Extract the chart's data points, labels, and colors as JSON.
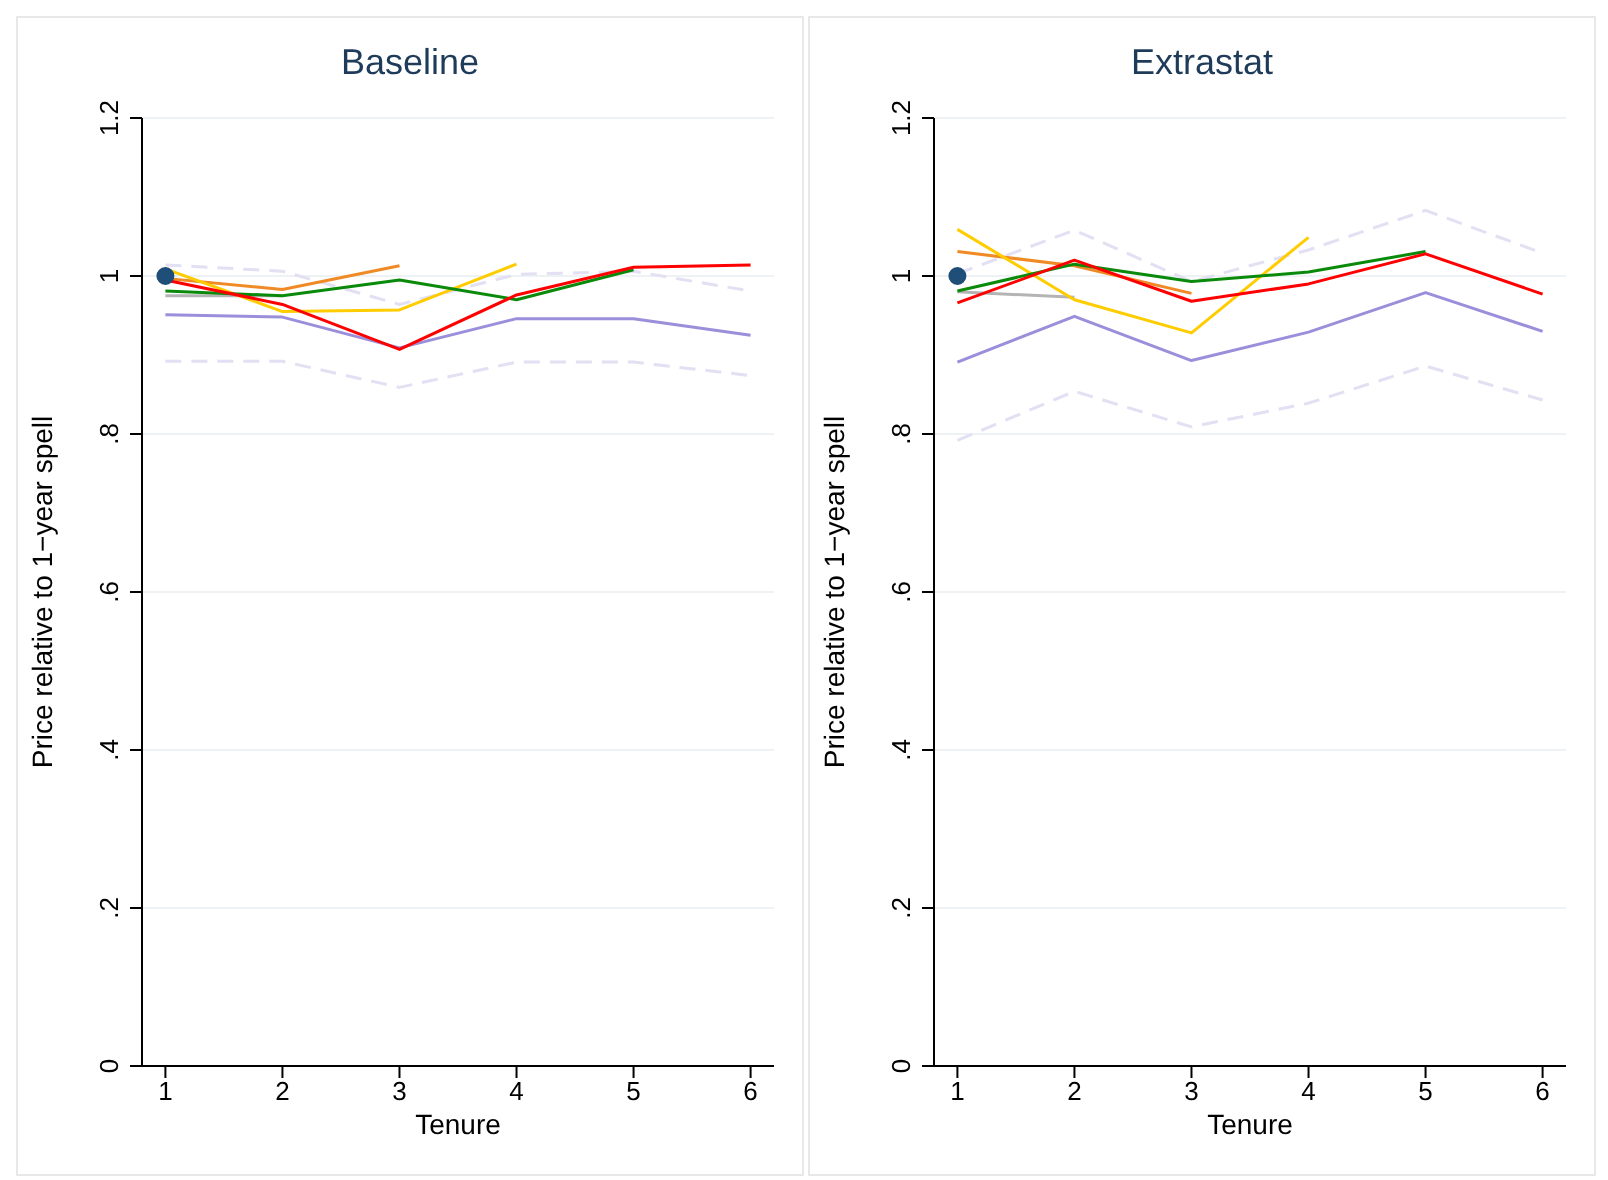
{
  "chart_data": [
    {
      "type": "line",
      "title": "Baseline",
      "xlabel": "Tenure",
      "ylabel": "Price relative to 1−year spell",
      "xlim": [
        0.8,
        6.2
      ],
      "xticks": [
        1,
        2,
        3,
        4,
        5,
        6
      ],
      "ylim": [
        0,
        1.2
      ],
      "yticks": [
        {
          "value": 0,
          "label": "0"
        },
        {
          "value": 0.2,
          "label": ".2"
        },
        {
          "value": 0.4,
          "label": ".4"
        },
        {
          "value": 0.6,
          "label": ".6"
        },
        {
          "value": 0.8,
          "label": ".8"
        },
        {
          "value": 1,
          "label": "1"
        },
        {
          "value": 1.2,
          "label": "1.2"
        }
      ],
      "grid": "y",
      "legend": false,
      "marker": "none",
      "series": [
        {
          "color": "#e2e0f2",
          "line_style": "dashed",
          "x": [
            1,
            2,
            3,
            4,
            5,
            6
          ],
          "values": [
            1.014,
            1.006,
            0.964,
            1.002,
            1.006,
            0.981
          ]
        },
        {
          "color": "#e2e0f2",
          "line_style": "dashed",
          "x": [
            1,
            2,
            3,
            4,
            5,
            6
          ],
          "values": [
            0.892,
            0.892,
            0.859,
            0.891,
            0.891,
            0.874
          ]
        },
        {
          "color": "#9b8fdb",
          "x": [
            1,
            2,
            3,
            4,
            5,
            6
          ],
          "values": [
            0.951,
            0.948,
            0.909,
            0.946,
            0.946,
            0.925
          ]
        },
        {
          "color": "#b4b4b4",
          "x": [
            1,
            2
          ],
          "values": [
            0.975,
            0.975
          ]
        },
        {
          "color": "#f08a24",
          "x": [
            1,
            2,
            3
          ],
          "values": [
            0.997,
            0.983,
            1.013
          ]
        },
        {
          "color": "#ffcc00",
          "x": [
            1,
            2,
            3,
            4
          ],
          "values": [
            1.009,
            0.955,
            0.957,
            1.015
          ]
        },
        {
          "color": "#0a8a0a",
          "x": [
            1,
            2,
            3,
            4,
            5
          ],
          "values": [
            0.981,
            0.975,
            0.995,
            0.97,
            1.008
          ]
        },
        {
          "color": "#ff0000",
          "x": [
            1,
            2,
            3,
            4,
            5,
            6
          ],
          "values": [
            0.995,
            0.964,
            0.907,
            0.976,
            1.011,
            1.014
          ]
        },
        {
          "type": "scatter",
          "marker": "circle",
          "color": "#1f4e79",
          "x": [
            1
          ],
          "values": [
            1
          ]
        }
      ]
    },
    {
      "type": "line",
      "title": "Extrastat",
      "xlabel": "Tenure",
      "ylabel": "Price relative to 1−year spell",
      "xlim": [
        0.8,
        6.2
      ],
      "xticks": [
        1,
        2,
        3,
        4,
        5,
        6
      ],
      "ylim": [
        0,
        1.2
      ],
      "yticks": [
        {
          "value": 0,
          "label": "0"
        },
        {
          "value": 0.2,
          "label": ".2"
        },
        {
          "value": 0.4,
          "label": ".4"
        },
        {
          "value": 0.6,
          "label": ".6"
        },
        {
          "value": 0.8,
          "label": ".8"
        },
        {
          "value": 1,
          "label": "1"
        },
        {
          "value": 1.2,
          "label": "1.2"
        }
      ],
      "grid": "y",
      "legend": false,
      "marker": "none",
      "series": [
        {
          "color": "#e2e0f2",
          "line_style": "dashed",
          "x": [
            1,
            2,
            3,
            4,
            5,
            6
          ],
          "values": [
            1.003,
            1.058,
            0.993,
            1.033,
            1.083,
            1.029
          ]
        },
        {
          "color": "#e2e0f2",
          "line_style": "dashed",
          "x": [
            1,
            2,
            3,
            4,
            5,
            6
          ],
          "values": [
            0.792,
            0.854,
            0.809,
            0.839,
            0.886,
            0.843
          ]
        },
        {
          "color": "#9b8fdb",
          "x": [
            1,
            2,
            3,
            4,
            5,
            6
          ],
          "values": [
            0.891,
            0.949,
            0.893,
            0.929,
            0.979,
            0.93
          ]
        },
        {
          "color": "#b4b4b4",
          "x": [
            1,
            2
          ],
          "values": [
            0.98,
            0.973
          ]
        },
        {
          "color": "#f08a24",
          "x": [
            1,
            2,
            3
          ],
          "values": [
            1.031,
            1.013,
            0.978
          ]
        },
        {
          "color": "#ffcc00",
          "x": [
            1,
            2,
            3,
            4
          ],
          "values": [
            1.059,
            0.97,
            0.928,
            1.049
          ]
        },
        {
          "color": "#0a8a0a",
          "x": [
            1,
            2,
            3,
            4,
            5
          ],
          "values": [
            0.981,
            1.015,
            0.993,
            1.005,
            1.031
          ]
        },
        {
          "color": "#ff0000",
          "x": [
            1,
            2,
            3,
            4,
            5,
            6
          ],
          "values": [
            0.966,
            1.02,
            0.968,
            0.99,
            1.028,
            0.977
          ]
        },
        {
          "type": "scatter",
          "marker": "circle",
          "color": "#1f4e79",
          "x": [
            1
          ],
          "values": [
            1
          ]
        }
      ]
    }
  ]
}
